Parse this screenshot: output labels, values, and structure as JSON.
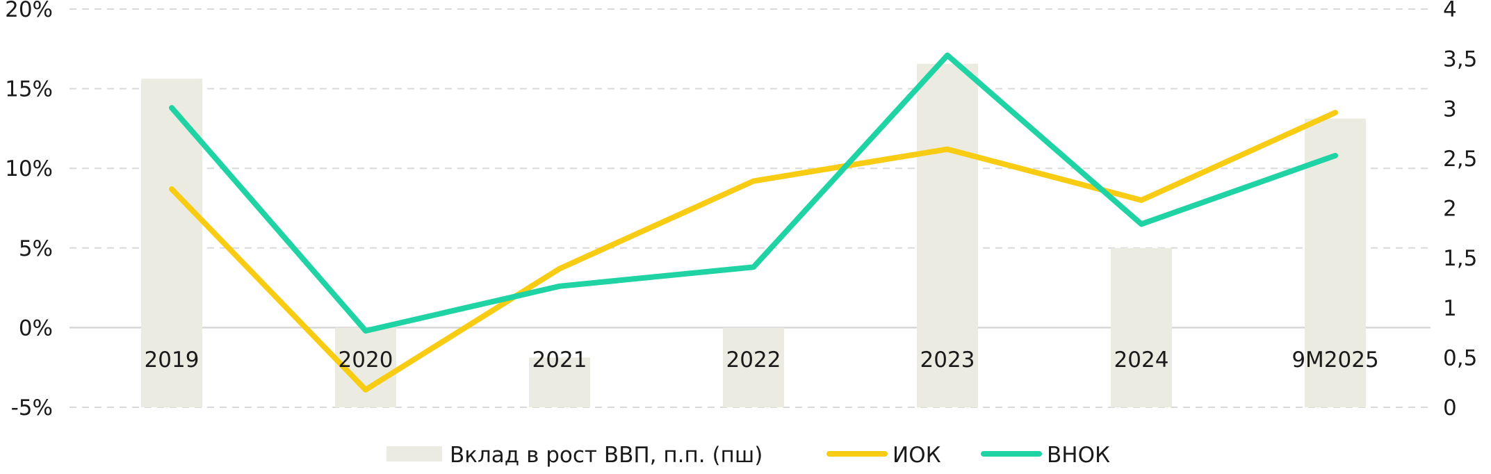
{
  "chart_data": {
    "type": "bar+line",
    "title": "",
    "categories": [
      "2019",
      "2020",
      "2021",
      "2022",
      "2023",
      "2024",
      "9M2025"
    ],
    "y_left": {
      "min": -5,
      "max": 20,
      "step": 5,
      "tick_labels": [
        "-5%",
        "0%",
        "5%",
        "10%",
        "15%",
        "20%"
      ]
    },
    "y_right": {
      "min": 0,
      "max": 4,
      "step": 0.5,
      "tick_labels": [
        "0",
        "0,5",
        "1",
        "1,5",
        "2",
        "2,5",
        "3",
        "3,5",
        "4"
      ]
    },
    "grid": true,
    "legend_position": "bottom",
    "series": [
      {
        "name": "Вклад в рост ВВП, п.п. (пш)",
        "kind": "bar",
        "axis": "right",
        "color": "#ECEBE1",
        "values": [
          3.3,
          0.8,
          0.5,
          0.8,
          3.45,
          1.6,
          2.9
        ]
      },
      {
        "name": "ИОК",
        "kind": "line",
        "axis": "left",
        "color": "#F8CC13",
        "values": [
          8.7,
          -3.9,
          3.7,
          9.2,
          11.2,
          8.0,
          13.5
        ]
      },
      {
        "name": "ВНОК",
        "kind": "line",
        "axis": "left",
        "color": "#1FD3A4",
        "values": [
          13.8,
          -0.2,
          2.6,
          3.8,
          17.1,
          6.5,
          10.8
        ]
      }
    ]
  }
}
